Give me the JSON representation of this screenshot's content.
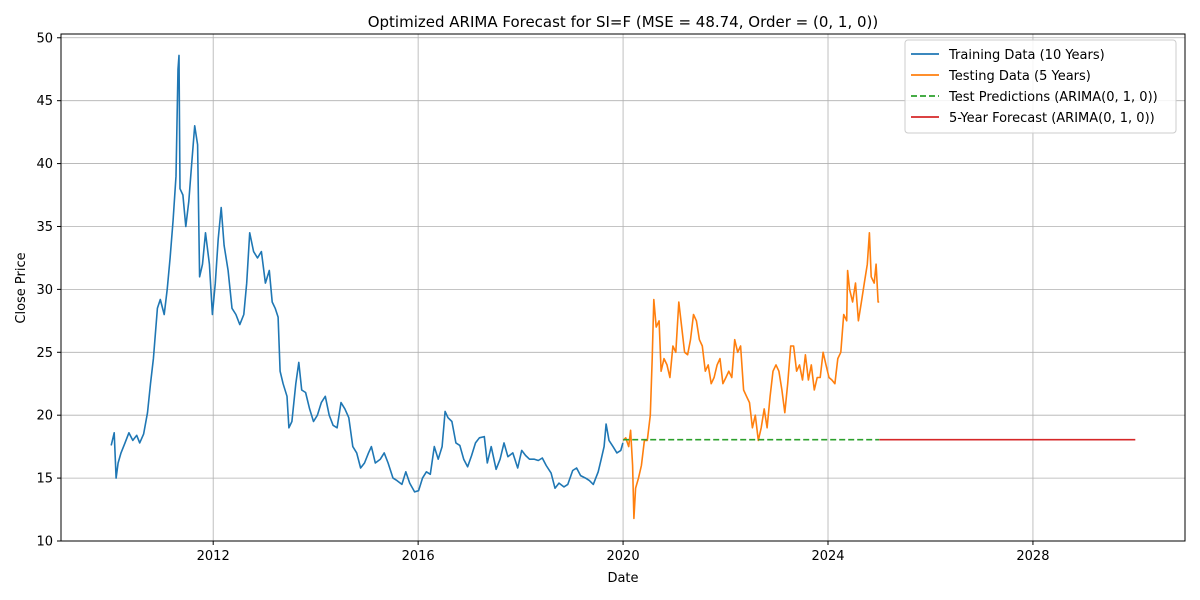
{
  "chart_data": {
    "type": "line",
    "title": "Optimized ARIMA Forecast for SI=F (MSE = 48.74, Order = (0, 1, 0))",
    "xlabel": "Date",
    "ylabel": "Close Price",
    "xlim": [
      "2009-01-11",
      "2030-12-20"
    ],
    "ylim": [
      10,
      50.3
    ],
    "x_ticks": [
      "2012",
      "2016",
      "2020",
      "2024",
      "2028"
    ],
    "y_ticks": [
      "10",
      "15",
      "20",
      "25",
      "30",
      "35",
      "40",
      "45",
      "50"
    ],
    "grid": true,
    "legend_position": "top-right",
    "series": [
      {
        "name": "Training Data (10 Years)",
        "color": "#1f77b4",
        "style": "solid",
        "points": [
          [
            "2010-01-04",
            17.6
          ],
          [
            "2010-01-25",
            18.6
          ],
          [
            "2010-02-08",
            15.0
          ],
          [
            "2010-02-22",
            16.2
          ],
          [
            "2010-03-15",
            17.0
          ],
          [
            "2010-04-12",
            17.8
          ],
          [
            "2010-05-10",
            18.6
          ],
          [
            "2010-06-07",
            18.0
          ],
          [
            "2010-07-05",
            18.4
          ],
          [
            "2010-07-26",
            17.8
          ],
          [
            "2010-08-23",
            18.5
          ],
          [
            "2010-09-20",
            20.2
          ],
          [
            "2010-10-11",
            22.5
          ],
          [
            "2010-11-01",
            24.5
          ],
          [
            "2010-11-29",
            28.5
          ],
          [
            "2010-12-20",
            29.2
          ],
          [
            "2011-01-17",
            28.0
          ],
          [
            "2011-02-07",
            30.0
          ],
          [
            "2011-02-28",
            32.5
          ],
          [
            "2011-03-21",
            35.5
          ],
          [
            "2011-04-11",
            39.0
          ],
          [
            "2011-04-25",
            47.5
          ],
          [
            "2011-05-02",
            48.6
          ],
          [
            "2011-05-09",
            38.0
          ],
          [
            "2011-05-30",
            37.5
          ],
          [
            "2011-06-20",
            35.0
          ],
          [
            "2011-07-11",
            37.0
          ],
          [
            "2011-08-01",
            40.0
          ],
          [
            "2011-08-22",
            43.0
          ],
          [
            "2011-09-12",
            41.5
          ],
          [
            "2011-09-26",
            31.0
          ],
          [
            "2011-10-17",
            32.0
          ],
          [
            "2011-11-07",
            34.5
          ],
          [
            "2011-12-05",
            32.0
          ],
          [
            "2011-12-26",
            28.0
          ],
          [
            "2012-01-16",
            30.5
          ],
          [
            "2012-02-06",
            34.0
          ],
          [
            "2012-02-27",
            36.5
          ],
          [
            "2012-03-19",
            33.5
          ],
          [
            "2012-04-16",
            31.5
          ],
          [
            "2012-05-14",
            28.5
          ],
          [
            "2012-06-11",
            28.0
          ],
          [
            "2012-07-09",
            27.2
          ],
          [
            "2012-08-06",
            28.0
          ],
          [
            "2012-08-27",
            30.5
          ],
          [
            "2012-09-17",
            34.5
          ],
          [
            "2012-10-15",
            33.0
          ],
          [
            "2012-11-12",
            32.5
          ],
          [
            "2012-12-10",
            33.0
          ],
          [
            "2013-01-07",
            30.5
          ],
          [
            "2013-02-04",
            31.5
          ],
          [
            "2013-02-25",
            29.0
          ],
          [
            "2013-03-18",
            28.5
          ],
          [
            "2013-04-08",
            27.8
          ],
          [
            "2013-04-22",
            23.5
          ],
          [
            "2013-05-13",
            22.5
          ],
          [
            "2013-06-10",
            21.5
          ],
          [
            "2013-06-24",
            19.0
          ],
          [
            "2013-07-15",
            19.5
          ],
          [
            "2013-08-12",
            22.5
          ],
          [
            "2013-09-02",
            24.2
          ],
          [
            "2013-09-23",
            22.0
          ],
          [
            "2013-10-21",
            21.8
          ],
          [
            "2013-11-18",
            20.5
          ],
          [
            "2013-12-16",
            19.5
          ],
          [
            "2014-01-13",
            20.0
          ],
          [
            "2014-02-10",
            21.0
          ],
          [
            "2014-03-10",
            21.5
          ],
          [
            "2014-04-07",
            20.0
          ],
          [
            "2014-05-05",
            19.2
          ],
          [
            "2014-06-02",
            19.0
          ],
          [
            "2014-06-30",
            21.0
          ],
          [
            "2014-07-28",
            20.5
          ],
          [
            "2014-08-25",
            19.8
          ],
          [
            "2014-09-22",
            17.5
          ],
          [
            "2014-10-20",
            17.0
          ],
          [
            "2014-11-17",
            15.8
          ],
          [
            "2014-12-15",
            16.2
          ],
          [
            "2015-01-12",
            17.0
          ],
          [
            "2015-02-02",
            17.5
          ],
          [
            "2015-03-02",
            16.2
          ],
          [
            "2015-04-06",
            16.5
          ],
          [
            "2015-05-04",
            17.0
          ],
          [
            "2015-06-01",
            16.2
          ],
          [
            "2015-07-06",
            15.0
          ],
          [
            "2015-08-03",
            14.8
          ],
          [
            "2015-09-07",
            14.5
          ],
          [
            "2015-10-05",
            15.5
          ],
          [
            "2015-11-02",
            14.6
          ],
          [
            "2015-12-07",
            13.9
          ],
          [
            "2016-01-04",
            14.0
          ],
          [
            "2016-02-01",
            15.0
          ],
          [
            "2016-02-29",
            15.5
          ],
          [
            "2016-03-28",
            15.3
          ],
          [
            "2016-04-25",
            17.5
          ],
          [
            "2016-05-23",
            16.5
          ],
          [
            "2016-06-20",
            17.5
          ],
          [
            "2016-07-11",
            20.3
          ],
          [
            "2016-08-01",
            19.8
          ],
          [
            "2016-08-29",
            19.5
          ],
          [
            "2016-09-26",
            17.8
          ],
          [
            "2016-10-24",
            17.6
          ],
          [
            "2016-11-21",
            16.5
          ],
          [
            "2016-12-19",
            15.9
          ],
          [
            "2017-01-16",
            16.8
          ],
          [
            "2017-02-13",
            17.8
          ],
          [
            "2017-03-13",
            18.2
          ],
          [
            "2017-04-17",
            18.3
          ],
          [
            "2017-05-08",
            16.2
          ],
          [
            "2017-06-05",
            17.5
          ],
          [
            "2017-07-10",
            15.7
          ],
          [
            "2017-08-07",
            16.5
          ],
          [
            "2017-09-04",
            17.8
          ],
          [
            "2017-10-02",
            16.7
          ],
          [
            "2017-11-06",
            17.0
          ],
          [
            "2017-12-11",
            15.8
          ],
          [
            "2018-01-08",
            17.2
          ],
          [
            "2018-02-05",
            16.8
          ],
          [
            "2018-03-05",
            16.5
          ],
          [
            "2018-04-09",
            16.5
          ],
          [
            "2018-05-07",
            16.4
          ],
          [
            "2018-06-04",
            16.6
          ],
          [
            "2018-07-02",
            16.0
          ],
          [
            "2018-08-06",
            15.4
          ],
          [
            "2018-09-03",
            14.2
          ],
          [
            "2018-10-01",
            14.6
          ],
          [
            "2018-11-05",
            14.3
          ],
          [
            "2018-12-03",
            14.5
          ],
          [
            "2019-01-07",
            15.6
          ],
          [
            "2019-02-04",
            15.8
          ],
          [
            "2019-03-04",
            15.2
          ],
          [
            "2019-04-08",
            15.0
          ],
          [
            "2019-05-06",
            14.8
          ],
          [
            "2019-06-03",
            14.5
          ],
          [
            "2019-07-08",
            15.5
          ],
          [
            "2019-07-29",
            16.5
          ],
          [
            "2019-08-19",
            17.5
          ],
          [
            "2019-09-02",
            19.3
          ],
          [
            "2019-09-23",
            18.0
          ],
          [
            "2019-10-21",
            17.5
          ],
          [
            "2019-11-18",
            17.0
          ],
          [
            "2019-12-16",
            17.2
          ],
          [
            "2019-12-31",
            17.8
          ]
        ]
      },
      {
        "name": "Testing Data (5 Years)",
        "color": "#ff7f0e",
        "style": "solid",
        "points": [
          [
            "2020-01-02",
            18.0
          ],
          [
            "2020-01-20",
            18.2
          ],
          [
            "2020-02-10",
            17.5
          ],
          [
            "2020-02-24",
            18.8
          ],
          [
            "2020-03-09",
            16.0
          ],
          [
            "2020-03-18",
            11.8
          ],
          [
            "2020-03-30",
            14.2
          ],
          [
            "2020-04-20",
            15.0
          ],
          [
            "2020-05-11",
            16.0
          ],
          [
            "2020-06-01",
            18.0
          ],
          [
            "2020-06-22",
            18.0
          ],
          [
            "2020-07-13",
            20.0
          ],
          [
            "2020-07-27",
            24.5
          ],
          [
            "2020-08-07",
            29.2
          ],
          [
            "2020-08-24",
            27.0
          ],
          [
            "2020-09-14",
            27.5
          ],
          [
            "2020-09-28",
            23.5
          ],
          [
            "2020-10-19",
            24.5
          ],
          [
            "2020-11-09",
            24.0
          ],
          [
            "2020-11-30",
            23.0
          ],
          [
            "2020-12-21",
            25.5
          ],
          [
            "2021-01-11",
            25.0
          ],
          [
            "2021-02-01",
            29.0
          ],
          [
            "2021-02-22",
            27.0
          ],
          [
            "2021-03-15",
            25.0
          ],
          [
            "2021-04-05",
            24.8
          ],
          [
            "2021-04-26",
            26.0
          ],
          [
            "2021-05-17",
            28.0
          ],
          [
            "2021-06-07",
            27.5
          ],
          [
            "2021-06-28",
            26.0
          ],
          [
            "2021-07-19",
            25.5
          ],
          [
            "2021-08-09",
            23.5
          ],
          [
            "2021-08-30",
            24.0
          ],
          [
            "2021-09-20",
            22.5
          ],
          [
            "2021-10-11",
            23.0
          ],
          [
            "2021-11-01",
            24.0
          ],
          [
            "2021-11-22",
            24.5
          ],
          [
            "2021-12-13",
            22.5
          ],
          [
            "2022-01-03",
            23.0
          ],
          [
            "2022-01-24",
            23.5
          ],
          [
            "2022-02-14",
            23.0
          ],
          [
            "2022-03-07",
            26.0
          ],
          [
            "2022-03-28",
            25.0
          ],
          [
            "2022-04-18",
            25.5
          ],
          [
            "2022-05-09",
            22.0
          ],
          [
            "2022-05-30",
            21.5
          ],
          [
            "2022-06-20",
            21.0
          ],
          [
            "2022-07-11",
            19.0
          ],
          [
            "2022-08-01",
            20.0
          ],
          [
            "2022-08-22",
            18.0
          ],
          [
            "2022-09-12",
            19.0
          ],
          [
            "2022-10-03",
            20.5
          ],
          [
            "2022-10-24",
            19.0
          ],
          [
            "2022-11-14",
            21.5
          ],
          [
            "2022-12-05",
            23.5
          ],
          [
            "2022-12-26",
            24.0
          ],
          [
            "2023-01-16",
            23.5
          ],
          [
            "2023-02-06",
            22.0
          ],
          [
            "2023-02-27",
            20.2
          ],
          [
            "2023-03-20",
            22.5
          ],
          [
            "2023-04-10",
            25.5
          ],
          [
            "2023-05-01",
            25.5
          ],
          [
            "2023-05-22",
            23.5
          ],
          [
            "2023-06-12",
            24.0
          ],
          [
            "2023-07-03",
            22.8
          ],
          [
            "2023-07-24",
            24.8
          ],
          [
            "2023-08-14",
            22.8
          ],
          [
            "2023-09-04",
            24.0
          ],
          [
            "2023-09-25",
            22.0
          ],
          [
            "2023-10-16",
            23.0
          ],
          [
            "2023-11-06",
            23.0
          ],
          [
            "2023-11-27",
            25.0
          ],
          [
            "2023-12-18",
            24.0
          ],
          [
            "2024-01-08",
            23.0
          ],
          [
            "2024-01-29",
            22.8
          ],
          [
            "2024-02-19",
            22.5
          ],
          [
            "2024-03-11",
            24.5
          ],
          [
            "2024-04-01",
            25.0
          ],
          [
            "2024-04-22",
            28.0
          ],
          [
            "2024-05-13",
            27.5
          ],
          [
            "2024-05-20",
            31.5
          ],
          [
            "2024-06-03",
            30.0
          ],
          [
            "2024-06-24",
            29.0
          ],
          [
            "2024-07-15",
            30.5
          ],
          [
            "2024-08-05",
            27.5
          ],
          [
            "2024-08-26",
            29.0
          ],
          [
            "2024-09-16",
            30.5
          ],
          [
            "2024-10-07",
            32.0
          ],
          [
            "2024-10-22",
            34.5
          ],
          [
            "2024-11-04",
            31.0
          ],
          [
            "2024-11-25",
            30.5
          ],
          [
            "2024-12-09",
            32.0
          ],
          [
            "2024-12-23",
            29.0
          ],
          [
            "2024-12-31",
            29.0
          ]
        ]
      },
      {
        "name": "Test Predictions (ARIMA(0, 1, 0))",
        "color": "#2ca02c",
        "style": "dashed",
        "points": [
          [
            "2020-01-02",
            18.05
          ],
          [
            "2024-12-31",
            18.05
          ]
        ]
      },
      {
        "name": "5-Year Forecast (ARIMA(0, 1, 0))",
        "color": "#d62728",
        "style": "solid",
        "points": [
          [
            "2025-01-01",
            18.05
          ],
          [
            "2029-12-31",
            18.05
          ]
        ]
      }
    ]
  }
}
